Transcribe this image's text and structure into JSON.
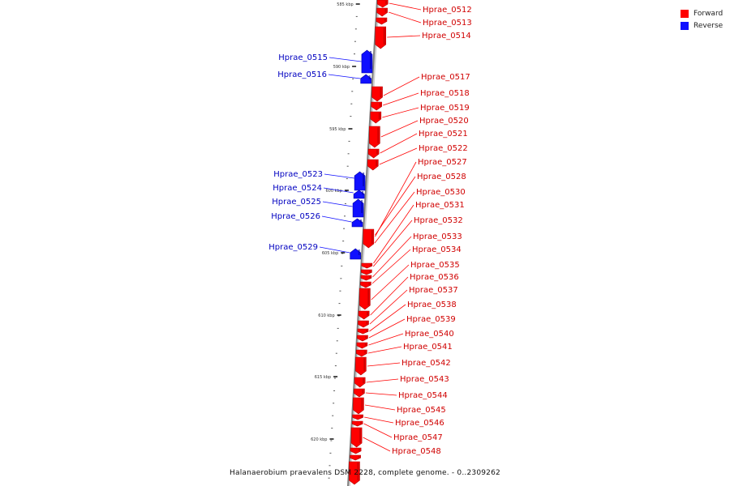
{
  "title": "Halanaerobium praevalens DSM 2228, complete genome. - 0..2309262",
  "legend": [
    {
      "label": "Forward",
      "color": "#ff0000"
    },
    {
      "label": "Reverse",
      "color": "#1010ff"
    }
  ],
  "scale": {
    "ticks": [
      "585 kbp",
      "590 kbp",
      "595 kbp",
      "600 kbp",
      "605 kbp",
      "610 kbp",
      "615 kbp",
      "620 kbp"
    ]
  },
  "genes_forward": [
    "Hprae_0512",
    "Hprae_0513",
    "Hprae_0514",
    "Hprae_0517",
    "Hprae_0518",
    "Hprae_0519",
    "Hprae_0520",
    "Hprae_0521",
    "Hprae_0522",
    "Hprae_0527",
    "Hprae_0528",
    "Hprae_0530",
    "Hprae_0531",
    "Hprae_0532",
    "Hprae_0533",
    "Hprae_0534",
    "Hprae_0535",
    "Hprae_0536",
    "Hprae_0537",
    "Hprae_0538",
    "Hprae_0539",
    "Hprae_0540",
    "Hprae_0541",
    "Hprae_0542",
    "Hprae_0543",
    "Hprae_0544",
    "Hprae_0545",
    "Hprae_0546",
    "Hprae_0547",
    "Hprae_0548"
  ],
  "genes_reverse": [
    "Hprae_0515",
    "Hprae_0516",
    "Hprae_0523",
    "Hprae_0524",
    "Hprae_0525",
    "Hprae_0526",
    "Hprae_0529"
  ]
}
